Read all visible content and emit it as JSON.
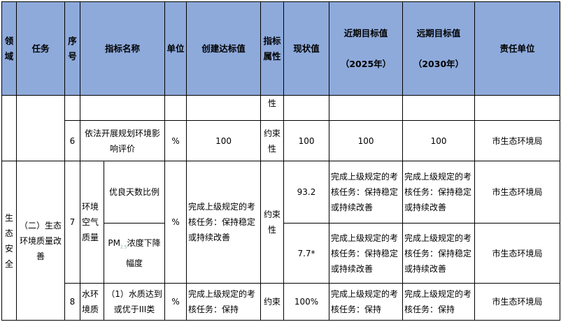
{
  "header": {
    "domain": "领域",
    "task": "任务",
    "seq": "序号",
    "name": "指标名称",
    "unit": "单位",
    "target": "创建达标值",
    "attr": "指标属性",
    "current": "现状值",
    "near": "近期目标值",
    "near_year": "（2025年）",
    "far": "远期目标值",
    "far_year": "（2030年）",
    "resp": "责任单位"
  },
  "rows": {
    "r1": {
      "attr": "性"
    },
    "r2": {
      "seq": "6",
      "name": "依法开展规划环境影响评价",
      "unit": "%",
      "target": "100",
      "attr": "约束性",
      "current": "100",
      "near": "100",
      "far": "100",
      "resp": "市生态环境局"
    },
    "group": {
      "domain": "生态安全",
      "task": "（二）生态环境质量改善"
    },
    "r3": {
      "seq": "7",
      "sub": "环境空气质量",
      "name": "优良天数比例",
      "unit": "%",
      "target": "完成上级规定的考核任务：保持稳定或持续改善",
      "attr": "约束性",
      "current": "93.2",
      "near": "完成上级规定的考核任务：保持稳定或持续改善",
      "far": "完成上级规定的考核任务：保持稳定或持续改善",
      "resp": "市生态环境局"
    },
    "r4": {
      "name_pre": "PM",
      "name_sub": "2.5",
      "name_post": "浓度下降幅度",
      "current": "7.7*",
      "near": "完成上级规定的考核任务：保持稳定或持续改善",
      "far": "完成上级规定的考核任务：保持稳定或持续改善",
      "resp": "市生态环境局"
    },
    "r5": {
      "seq": "8",
      "sub": "水环境质",
      "name": "（1）水质达到或优于III类",
      "unit": "%",
      "target": "完成上级规定的考核任务：保持",
      "attr": "约束",
      "current": "100%",
      "near": "完成上级规定的考核任务：保持",
      "far": "完成上级规定的考核任务：保持",
      "resp": "市生态环境局"
    }
  }
}
